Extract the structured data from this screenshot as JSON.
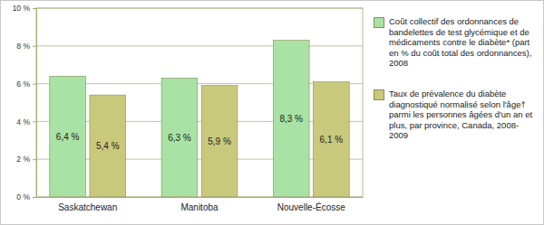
{
  "chart_data": {
    "type": "bar",
    "categories": [
      "Saskatchewan",
      "Manitoba",
      "Nouvelle-Écosse"
    ],
    "series": [
      {
        "name": "Coût collectif des ordonnances de bandelettes de test glycémique et de médicaments contre le diabète* (part en % du coût total des ordonnances), 2008",
        "color": "#a8e2a4",
        "values": [
          6.4,
          6.3,
          8.3
        ],
        "value_labels": [
          "6,4 %",
          "6,3 %",
          "8,3 %"
        ]
      },
      {
        "name": "Taux de prévalence du diabète diagnostiqué normalisé selon l'âge† parmi les personnes âgées d'un an et plus, par province, Canada, 2008-2009",
        "color": "#c9c97c",
        "values": [
          5.4,
          5.9,
          6.1
        ],
        "value_labels": [
          "5,4 %",
          "5,9 %",
          "6,1 %"
        ]
      }
    ],
    "ylim": [
      0,
      10
    ],
    "yticks": [
      {
        "value": 0,
        "label": "0 %"
      },
      {
        "value": 2,
        "label": "2 %"
      },
      {
        "value": 4,
        "label": "4 %"
      },
      {
        "value": 6,
        "label": "6 %"
      },
      {
        "value": 8,
        "label": "8 %"
      },
      {
        "value": 10,
        "label": "10 %"
      }
    ],
    "grid": true,
    "data_labels": true,
    "legend": "right"
  }
}
